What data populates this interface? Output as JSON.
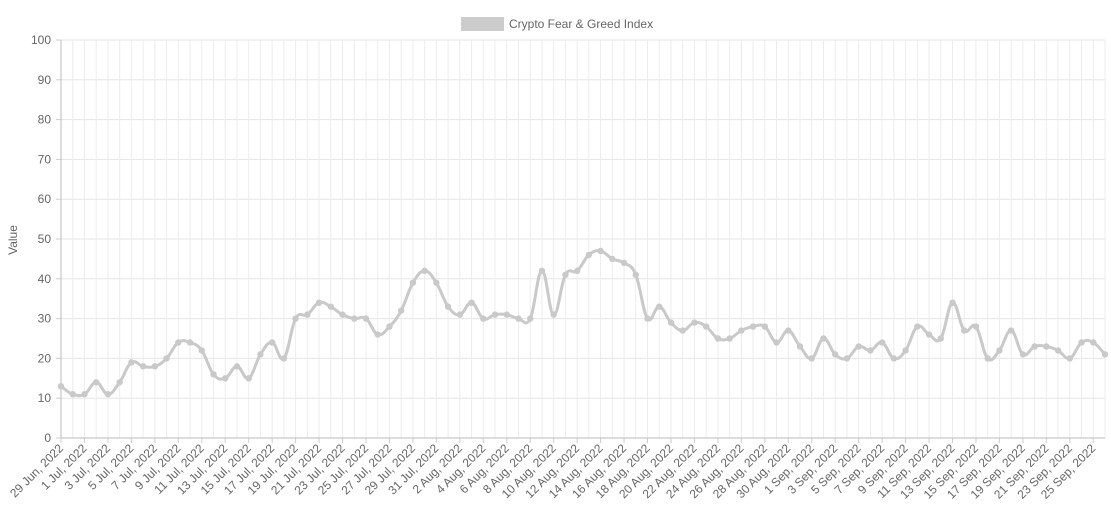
{
  "chart_data": {
    "type": "line",
    "title": "",
    "xlabel": "",
    "ylabel": "Value",
    "ylim": [
      0,
      100
    ],
    "yticks": [
      0,
      10,
      20,
      30,
      40,
      50,
      60,
      70,
      80,
      90,
      100
    ],
    "grid": true,
    "legend_position": "top",
    "x_tick_labels": [
      "29 Jun, 2022",
      "1 Jul, 2022",
      "3 Jul, 2022",
      "5 Jul, 2022",
      "7 Jul, 2022",
      "9 Jul, 2022",
      "11 Jul, 2022",
      "13 Jul, 2022",
      "15 Jul, 2022",
      "17 Jul, 2022",
      "19 Jul, 2022",
      "21 Jul, 2022",
      "23 Jul, 2022",
      "25 Jul, 2022",
      "27 Jul, 2022",
      "29 Jul, 2022",
      "31 Jul, 2022",
      "2 Aug, 2022",
      "4 Aug, 2022",
      "6 Aug, 2022",
      "8 Aug, 2022",
      "10 Aug, 2022",
      "12 Aug, 2022",
      "14 Aug, 2022",
      "16 Aug, 2022",
      "18 Aug, 2022",
      "20 Aug, 2022",
      "22 Aug, 2022",
      "24 Aug, 2022",
      "26 Aug, 2022",
      "28 Aug, 2022",
      "30 Aug, 2022",
      "1 Sep, 2022",
      "3 Sep, 2022",
      "5 Sep, 2022",
      "7 Sep, 2022",
      "9 Sep, 2022",
      "11 Sep, 2022",
      "13 Sep, 2022",
      "15 Sep, 2022",
      "17 Sep, 2022",
      "19 Sep, 2022",
      "21 Sep, 2022",
      "23 Sep, 2022",
      "25 Sep, 2022"
    ],
    "series": [
      {
        "name": "Crypto Fear & Greed Index",
        "color": "#c9c9c9",
        "values": [
          13,
          11,
          11,
          14,
          11,
          14,
          19,
          18,
          18,
          20,
          24,
          24,
          22,
          16,
          15,
          18,
          15,
          21,
          24,
          20,
          30,
          31,
          34,
          33,
          31,
          30,
          30,
          26,
          28,
          32,
          39,
          42,
          39,
          33,
          31,
          34,
          30,
          31,
          31,
          30,
          30,
          42,
          31,
          41,
          42,
          46,
          47,
          45,
          44,
          41,
          30,
          33,
          29,
          27,
          29,
          28,
          25,
          25,
          27,
          28,
          28,
          24,
          27,
          23,
          20,
          25,
          21,
          20,
          23,
          22,
          24,
          20,
          22,
          28,
          26,
          25,
          34,
          27,
          28,
          20,
          22,
          27,
          21,
          23,
          23,
          22,
          20,
          24,
          24,
          21
        ]
      }
    ]
  }
}
